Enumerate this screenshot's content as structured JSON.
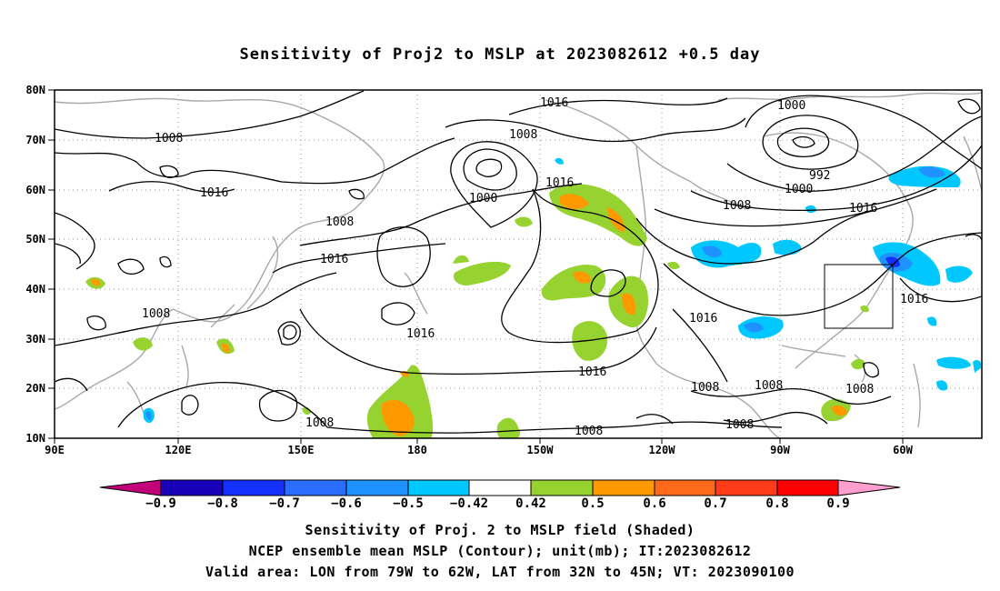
{
  "title": "Sensitivity of Proj2 to MSLP at 2023082612 +0.5 day",
  "map": {
    "lat_ticks": [
      "80N",
      "70N",
      "60N",
      "50N",
      "40N",
      "30N",
      "20N",
      "10N"
    ],
    "lon_ticks": [
      "90E",
      "120E",
      "150E",
      "180",
      "150W",
      "120W",
      "90W",
      "60W"
    ],
    "valid_box": {
      "lon": [
        -79,
        -62
      ],
      "lat": [
        32,
        45
      ]
    },
    "contour_labels": [
      "1016",
      "1000",
      "1008",
      "1008",
      "1016",
      "1016",
      "1000",
      "992",
      "1000",
      "1016",
      "1008",
      "1016",
      "1008",
      "1008",
      "1016",
      "1016",
      "1016",
      "1016",
      "1008",
      "1008",
      "1008",
      "1008",
      "1008",
      "1008"
    ]
  },
  "colorbar": {
    "colors": [
      "#c2007a",
      "#1700b8",
      "#1330ff",
      "#2a6dff",
      "#1e93ff",
      "#00c8ff",
      "#ffffff",
      "#96d230",
      "#ff9900",
      "#ff6a1a",
      "#ff3b1a",
      "#ff0000",
      "#ff9ecf"
    ],
    "labels": [
      "−0.9",
      "−0.8",
      "−0.7",
      "−0.6",
      "−0.5",
      "−0.42",
      "0.42",
      "0.5",
      "0.6",
      "0.7",
      "0.8",
      "0.9"
    ]
  },
  "captions": [
    "Sensitivity of Proj. 2 to MSLP field (Shaded)",
    "NCEP ensemble mean MSLP (Contour); unit(mb); IT:2023082612",
    "Valid area: LON from 79W to 62W, LAT from 32N to 45N; VT: 2023090100"
  ]
}
